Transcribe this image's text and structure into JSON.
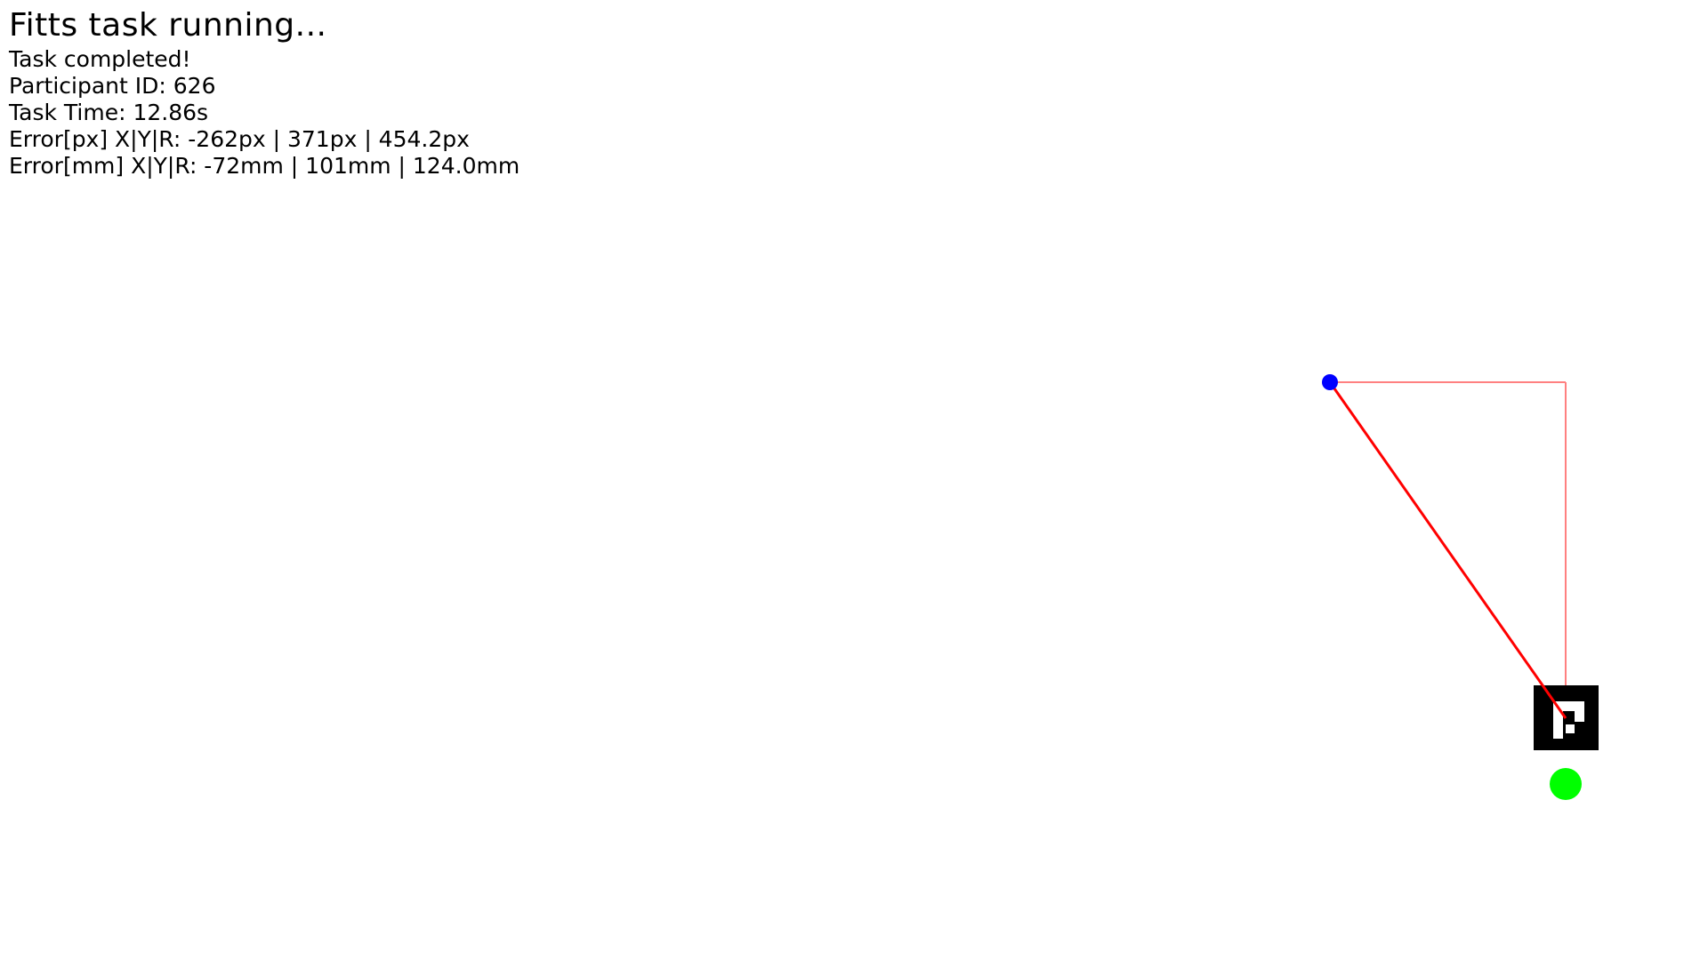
{
  "status": {
    "title": "Fitts task running...",
    "completed": "Task completed!",
    "participant": "Participant ID: 626",
    "task_time": "Task Time: 12.86s",
    "error_px": "Error[px] X|Y|R: -262px | 371px | 454.2px",
    "error_mm": "Error[mm] X|Y|R: -72mm | 101mm | 124.0mm"
  },
  "scene": {
    "cursor_icon": "blue-dot-cursor",
    "marker_icon": "aruco-fiducial-marker",
    "target_icon": "green-target-dot",
    "colors": {
      "background": "#ffffff",
      "text": "#000000",
      "cursor": "#0000ff",
      "target": "#00ff00",
      "error_line": "#ff0000",
      "component_lines": "#ff8080",
      "marker": "#000000"
    }
  }
}
